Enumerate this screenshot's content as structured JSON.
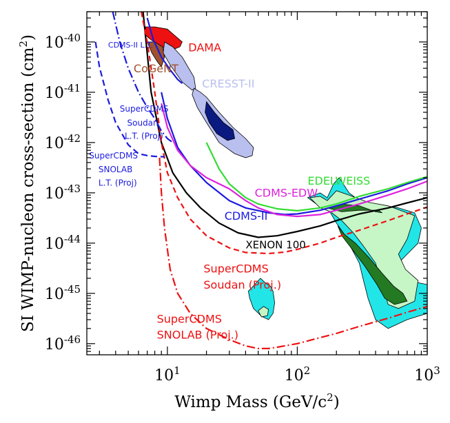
{
  "chart_data": {
    "type": "line",
    "xlabel": "Wimp Mass (GeV/c²)",
    "ylabel": "SI WIMP-nucleon cross-section (cm²)",
    "x_scale": "log",
    "y_scale": "log",
    "xlim": [
      2.4,
      1000
    ],
    "ylim": [
      6e-47,
      4e-40
    ],
    "x_ticks": [
      {
        "base": "10",
        "exp": "1",
        "value": 10
      },
      {
        "base": "10",
        "exp": "2",
        "value": 100
      },
      {
        "base": "10",
        "exp": "3",
        "value": 1000
      }
    ],
    "y_ticks": [
      {
        "base": "10",
        "exp": "-46",
        "value": 1e-46
      },
      {
        "base": "10",
        "exp": "-45",
        "value": 1e-45
      },
      {
        "base": "10",
        "exp": "-44",
        "value": 1e-44
      },
      {
        "base": "10",
        "exp": "-43",
        "value": 1e-43
      },
      {
        "base": "10",
        "exp": "-42",
        "value": 1e-42
      },
      {
        "base": "10",
        "exp": "-41",
        "value": 1e-41
      },
      {
        "base": "10",
        "exp": "-40",
        "value": 1e-40
      }
    ],
    "colors": {
      "xenon": "#000000",
      "cdms": "#1a1adf",
      "edelweiss": "#33dd33",
      "cdms_edw": "#dd22dd",
      "supercdms": "#ee1111",
      "light_blue": "#b9bfee",
      "navy": "#0a1a80",
      "dama": "#ee1111",
      "cogent": "#a0522d",
      "cyan": "#22e5e8",
      "light_green": "#c6f5c6",
      "dark_green": "#237a23"
    },
    "series": [
      {
        "name": "XENON 100",
        "color": "#000000",
        "dash": "solid",
        "x": [
          6.5,
          7.5,
          9,
          11,
          14,
          18,
          25,
          35,
          50,
          70,
          100,
          150,
          200,
          300,
          500,
          700,
          1000
        ],
        "y": [
          4e-40,
          1e-41,
          1e-42,
          2.5e-43,
          1e-43,
          5e-44,
          2.5e-44,
          1.6e-44,
          1.3e-44,
          1.4e-44,
          1.7e-44,
          2.2e-44,
          2.8e-44,
          3.8e-44,
          5e-44,
          6.3e-44,
          8e-44
        ]
      },
      {
        "name": "CDMS-II",
        "color": "#1a1adf",
        "dash": "solid",
        "x": [
          9,
          10,
          12,
          15,
          20,
          30,
          40,
          60,
          80,
          100,
          150,
          200,
          300,
          500,
          700,
          1000
        ],
        "y": [
          1e-41,
          3e-42,
          8e-43,
          3.5e-43,
          1.6e-43,
          7e-44,
          5e-44,
          4e-44,
          3.7e-44,
          3.8e-44,
          4.5e-44,
          5.5e-44,
          7.5e-44,
          1.1e-43,
          1.5e-43,
          2e-43
        ]
      },
      {
        "name": "CDMS-II L.T.",
        "color": "#1a1adf",
        "dash": "solid",
        "x": [
          7,
          7.8,
          9,
          10.5,
          12,
          13
        ],
        "y": [
          3e-40,
          1.1e-40,
          5e-41,
          2.8e-41,
          1.8e-41,
          1.5e-41
        ]
      },
      {
        "name": "CDMS-EDW",
        "color": "#dd22dd",
        "dash": "solid",
        "x": [
          9,
          10,
          12,
          15,
          20,
          30,
          40,
          50,
          70,
          100,
          150,
          200,
          300,
          500,
          700,
          1000
        ],
        "y": [
          6e-42,
          2e-42,
          7e-43,
          3.5e-43,
          2e-43,
          1.2e-43,
          7e-44,
          5e-44,
          3.7e-44,
          3.4e-44,
          3.7e-44,
          4.5e-44,
          6e-44,
          9e-44,
          1.2e-43,
          1.7e-43
        ]
      },
      {
        "name": "EDELWEISS",
        "color": "#33dd33",
        "dash": "solid",
        "x": [
          20,
          22,
          25,
          30,
          40,
          50,
          70,
          100,
          150,
          200,
          300,
          500,
          700,
          1000
        ],
        "y": [
          1e-42,
          6e-43,
          3e-43,
          1.5e-43,
          8e-44,
          6e-44,
          4.8e-44,
          4.4e-44,
          5e-44,
          6e-44,
          8.5e-44,
          1.2e-43,
          1.6e-43,
          2.1e-43
        ]
      },
      {
        "name": "SuperCDMS Soudan (Proj.)",
        "color": "#ee1111",
        "dash": "8,5",
        "x": [
          6.3,
          7,
          8,
          9,
          10,
          12,
          15,
          20,
          30,
          40,
          60,
          80,
          100,
          150,
          200,
          300,
          500,
          700,
          1000
        ],
        "y": [
          4e-40,
          1e-40,
          1e-41,
          1e-42,
          2.5e-43,
          8e-44,
          3e-44,
          1.4e-44,
          8e-45,
          6.5e-45,
          6.2e-45,
          6.6e-45,
          7.5e-45,
          1e-44,
          1.3e-44,
          1.8e-44,
          2.8e-44,
          3.8e-44,
          5.2e-44
        ]
      },
      {
        "name": "SuperCDMS SNOLAB (Proj.)",
        "color": "#ee1111",
        "dash": "12,4,2,4",
        "x": [
          8.7,
          9,
          9.5,
          10.5,
          12,
          15,
          20,
          30,
          40,
          50,
          60,
          70,
          100,
          200,
          300,
          500,
          700,
          1000
        ],
        "y": [
          5e-43,
          1e-43,
          2e-44,
          3e-45,
          1e-45,
          4e-46,
          2e-46,
          1.2e-46,
          9e-47,
          8e-47,
          8e-47,
          8.5e-47,
          1e-46,
          1.6e-46,
          2.2e-46,
          3.2e-46,
          4.2e-46,
          5.5e-46
        ]
      },
      {
        "name": "SuperCDMS Soudan L.T. (Proj)",
        "color": "#1a1adf",
        "dash": "9,5",
        "x": [
          2.8,
          3,
          3.5,
          4,
          5,
          6,
          7,
          8,
          9.5
        ],
        "y": [
          1e-40,
          3.2e-41,
          7e-42,
          2.5e-42,
          9e-43,
          6e-43,
          5.5e-43,
          5.3e-43,
          5.2e-43
        ]
      },
      {
        "name": "SuperCDMS SNOLAB L.T. (Proj)",
        "color": "#1a1adf",
        "dash": "12,4,2,4",
        "x": [
          3.8,
          4.3,
          5,
          6,
          7,
          8,
          9,
          10,
          11
        ],
        "y": [
          4e-40,
          1e-40,
          3e-41,
          1e-41,
          5e-42,
          3e-42,
          1.7e-42,
          1.2e-42,
          1e-42
        ]
      }
    ],
    "regions": [
      {
        "name": "DAMA",
        "color": "#ee1111",
        "points": [
          [
            6.8,
            2e-40
          ],
          [
            8,
            2e-40
          ],
          [
            10,
            1.8e-40
          ],
          [
            12,
            1.2e-40
          ],
          [
            13,
            1e-40
          ],
          [
            12.5,
            8e-41
          ],
          [
            11,
            7e-41
          ],
          [
            9,
            8e-41
          ],
          [
            7.5,
            1.1e-40
          ],
          [
            6.7,
            1.4e-40
          ]
        ]
      },
      {
        "name": "CoGeNT",
        "color": "#a0522d",
        "points": [
          [
            7,
            1e-40
          ],
          [
            8,
            1e-40
          ],
          [
            9.2,
            8e-41
          ],
          [
            9.5,
            5e-41
          ],
          [
            9,
            3.2e-41
          ],
          [
            8.4,
            4e-41
          ],
          [
            7.6,
            6e-41
          ]
        ]
      },
      {
        "name": "CRESST-II (low mass)",
        "color": "#b9bfee",
        "points": [
          [
            9.5,
            1e-40
          ],
          [
            11,
            8e-41
          ],
          [
            13,
            5e-41
          ],
          [
            16,
            2e-41
          ],
          [
            16.5,
            1.2e-41
          ],
          [
            15.5,
            1.1e-41
          ],
          [
            13,
            1.6e-41
          ],
          [
            10.5,
            3.5e-41
          ],
          [
            9.3,
            6e-41
          ]
        ]
      },
      {
        "name": "CRESST-II (high mass)",
        "color": "#b9bfee",
        "points": [
          [
            16,
            1.2e-41
          ],
          [
            18,
            1e-41
          ],
          [
            20,
            8e-42
          ],
          [
            25,
            4e-42
          ],
          [
            32,
            2e-42
          ],
          [
            40,
            1.2e-42
          ],
          [
            46,
            8e-43
          ],
          [
            45,
            5.5e-43
          ],
          [
            40,
            5e-43
          ],
          [
            33,
            6e-43
          ],
          [
            25,
            1e-42
          ],
          [
            20,
            2.5e-42
          ],
          [
            17,
            5e-42
          ],
          [
            15.5,
            9e-42
          ]
        ]
      },
      {
        "name": "CRESST-II core",
        "color": "#0a1a80",
        "points": [
          [
            20,
            6.5e-42
          ],
          [
            23,
            4e-42
          ],
          [
            27,
            2.5e-42
          ],
          [
            32,
            1.8e-42
          ],
          [
            33,
            1.2e-42
          ],
          [
            29,
            1.1e-42
          ],
          [
            24,
            1.5e-42
          ],
          [
            21,
            2.5e-42
          ],
          [
            19.5,
            4e-42
          ]
        ]
      },
      {
        "name": "Cyan contour (high mass)",
        "color": "#22e5e8",
        "points": [
          [
            150,
            1e-43
          ],
          [
            170,
            8e-44
          ],
          [
            190,
            1.5e-43
          ],
          [
            210,
            2e-43
          ],
          [
            250,
            1e-43
          ],
          [
            300,
            7e-44
          ],
          [
            400,
            6e-44
          ],
          [
            600,
            5e-44
          ],
          [
            800,
            4e-44
          ],
          [
            900,
            2e-44
          ],
          [
            850,
            1e-44
          ],
          [
            700,
            6e-45
          ],
          [
            600,
            4e-45
          ],
          [
            600,
            2.5e-45
          ],
          [
            700,
            1.8e-45
          ],
          [
            1000,
            1.5e-45
          ],
          [
            1000,
            4e-46
          ],
          [
            700,
            3e-46
          ],
          [
            500,
            2e-46
          ],
          [
            400,
            3e-46
          ],
          [
            350,
            8e-46
          ],
          [
            320,
            2e-45
          ],
          [
            300,
            4e-45
          ],
          [
            260,
            8e-45
          ],
          [
            230,
            1.5e-44
          ],
          [
            200,
            2.5e-44
          ],
          [
            180,
            4e-44
          ],
          [
            170,
            5e-44
          ],
          [
            140,
            6e-44
          ],
          [
            120,
            8e-44
          ]
        ]
      },
      {
        "name": "Light green contour",
        "color": "#c6f5c6",
        "points": [
          [
            125,
            8e-44
          ],
          [
            150,
            8.5e-44
          ],
          [
            170,
            7e-44
          ],
          [
            200,
            1.1e-43
          ],
          [
            250,
            9e-44
          ],
          [
            350,
            6.5e-44
          ],
          [
            500,
            5.5e-44
          ],
          [
            800,
            3.5e-44
          ],
          [
            700,
            1.2e-44
          ],
          [
            600,
            6e-45
          ],
          [
            680,
            3e-45
          ],
          [
            850,
            1.8e-45
          ],
          [
            800,
            7e-46
          ],
          [
            600,
            5e-46
          ],
          [
            500,
            6e-46
          ],
          [
            450,
            1.5e-45
          ],
          [
            400,
            4e-45
          ],
          [
            320,
            9e-45
          ],
          [
            270,
            1.6e-44
          ],
          [
            220,
            2.8e-44
          ],
          [
            180,
            4.2e-44
          ],
          [
            150,
            5e-44
          ]
        ]
      },
      {
        "name": "Dark green contour",
        "color": "#237a23",
        "points": [
          [
            170,
            5e-44
          ],
          [
            220,
            6e-44
          ],
          [
            300,
            5.5e-44
          ],
          [
            400,
            4.2e-44
          ],
          [
            450,
            4e-44
          ],
          [
            420,
            4.5e-44
          ],
          [
            300,
            4.5e-44
          ],
          [
            220,
            4.2e-44
          ]
        ]
      },
      {
        "name": "Dark green strip",
        "color": "#237a23",
        "points": [
          [
            205,
            2.2e-44
          ],
          [
            230,
            1.5e-44
          ],
          [
            280,
            1e-44
          ],
          [
            360,
            5e-45
          ],
          [
            450,
            2.5e-45
          ],
          [
            550,
            1.4e-45
          ],
          [
            650,
            1e-45
          ],
          [
            700,
            7e-46
          ],
          [
            560,
            6e-46
          ],
          [
            470,
            8e-46
          ],
          [
            410,
            1.5e-45
          ],
          [
            330,
            3.5e-45
          ],
          [
            270,
            7e-45
          ],
          [
            220,
            1.4e-44
          ]
        ]
      },
      {
        "name": "Cyan contour (low mass)",
        "color": "#22e5e8",
        "points": [
          [
            47,
            1.5e-45
          ],
          [
            52,
            2e-45
          ],
          [
            57,
            1.6e-45
          ],
          [
            62,
            1.4e-45
          ],
          [
            65,
            1.1e-45
          ],
          [
            67,
            6.5e-46
          ],
          [
            65,
            4e-46
          ],
          [
            60,
            3e-46
          ],
          [
            53,
            3.5e-46
          ],
          [
            46,
            5e-46
          ],
          [
            43,
            8e-46
          ],
          [
            42,
            1.1e-45
          ]
        ]
      },
      {
        "name": "Light green (low mass)",
        "color": "#c6f5c6",
        "points": [
          [
            50,
            4.5e-46
          ],
          [
            55,
            5.5e-46
          ],
          [
            60,
            4.8e-46
          ],
          [
            59,
            3.6e-46
          ],
          [
            53,
            3.4e-46
          ]
        ]
      }
    ],
    "annotations": [
      {
        "text": "DAMA",
        "color": "#ee1111",
        "size": 16,
        "x": 14.5,
        "y": 6.5e-41
      },
      {
        "text": "CDMS-II L.T.",
        "color": "#1a1adf",
        "size": 11,
        "x": 3.5,
        "y": 7.8e-41
      },
      {
        "text": "CoGeNT",
        "color": "#a0522d",
        "size": 16,
        "x": 5.5,
        "y": 2.5e-41
      },
      {
        "text": "CRESST-II",
        "color": "#b9bfee",
        "size": 16,
        "x": 18.5,
        "y": 1.25e-41
      },
      {
        "text": "SuperCDMS",
        "color": "#1a1adf",
        "size": 12,
        "x": 4.3,
        "y": 4.1e-42
      },
      {
        "text": "Soudan",
        "color": "#1a1adf",
        "size": 12,
        "x": 4.9,
        "y": 2.15e-42
      },
      {
        "text": "L.T. (Proj)",
        "color": "#1a1adf",
        "size": 12,
        "x": 4.7,
        "y": 1.18e-42
      },
      {
        "text": "SuperCDMS",
        "color": "#1a1adf",
        "size": 12,
        "x": 2.5,
        "y": 4.8e-43
      },
      {
        "text": "SNOLAB",
        "color": "#1a1adf",
        "size": 12,
        "x": 2.95,
        "y": 2.55e-43
      },
      {
        "text": "L.T. (Proj)",
        "color": "#1a1adf",
        "size": 12,
        "x": 2.95,
        "y": 1.38e-43
      },
      {
        "text": "EDELWEISS",
        "color": "#33dd33",
        "size": 16,
        "x": 120,
        "y": 1.45e-43
      },
      {
        "text": "CDMS-EDW",
        "color": "#dd22dd",
        "size": 16,
        "x": 47,
        "y": 8.4e-44
      },
      {
        "text": "CDMS-II",
        "color": "#1a1adf",
        "size": 16,
        "x": 27.5,
        "y": 2.9e-44
      },
      {
        "text": "XENON 100",
        "color": "#000000",
        "size": 15,
        "x": 40,
        "y": 7.8e-45
      },
      {
        "text": "SuperCDMS",
        "color": "#ee1111",
        "size": 16,
        "x": 19,
        "y": 2.6e-45
      },
      {
        "text": "Soudan (Proj.)",
        "color": "#ee1111",
        "size": 16,
        "x": 19,
        "y": 1.25e-45
      },
      {
        "text": "SuperCDMS",
        "color": "#ee1111",
        "size": 16,
        "x": 8.3,
        "y": 2.6e-46
      },
      {
        "text": "SNOLAB (Proj.)",
        "color": "#ee1111",
        "size": 16,
        "x": 8.3,
        "y": 1.25e-46
      }
    ]
  }
}
